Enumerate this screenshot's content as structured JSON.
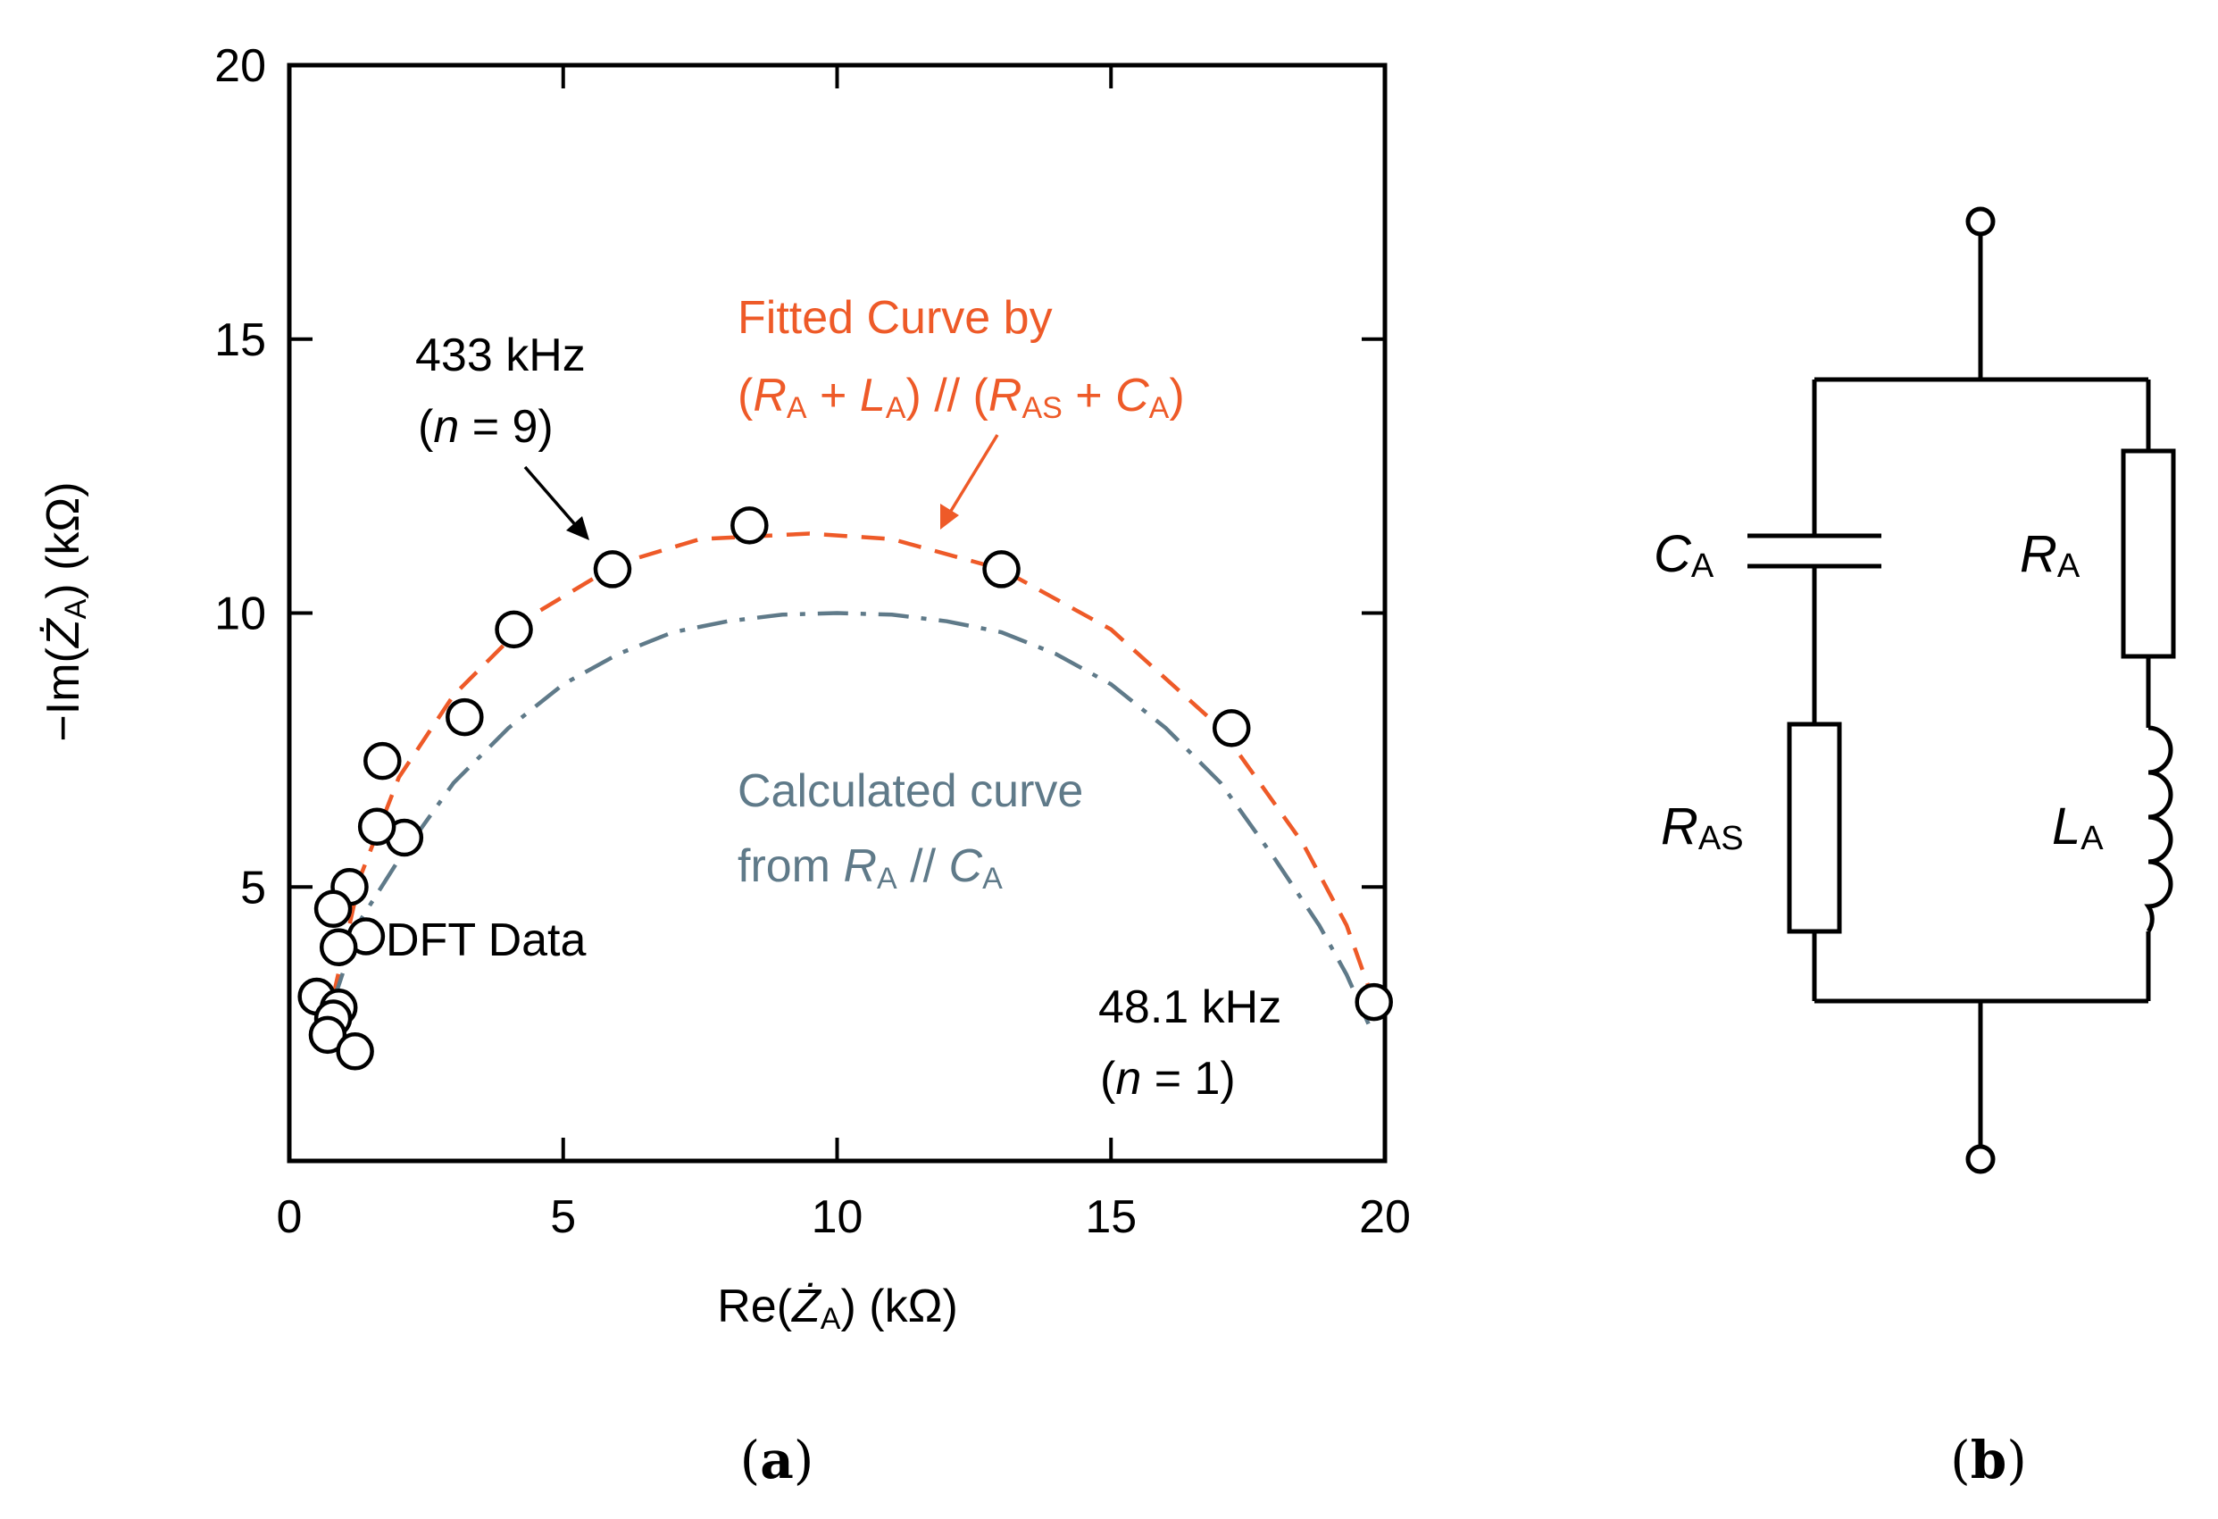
{
  "chart_data": {
    "type": "scatter",
    "xlabel": {
      "main": "Re(",
      "sym": "Ż",
      "sub": "A",
      "close": ") (kΩ)"
    },
    "ylabel": {
      "main": "−Im(",
      "sym": "Ż",
      "sub": "A",
      "close": ") (kΩ)"
    },
    "xlim": [
      0,
      20
    ],
    "ylim": [
      0,
      20
    ],
    "xticks": [
      0,
      5,
      10,
      15,
      20
    ],
    "yticks": [
      5,
      10,
      15,
      20
    ],
    "xtick_labels": [
      "0",
      "5",
      "10",
      "15",
      "20"
    ],
    "ytick_labels": [
      "5",
      "10",
      "15",
      "20"
    ],
    "series": [
      {
        "name": "DFT Data",
        "kind": "markers",
        "points": [
          [
            19.8,
            2.9
          ],
          [
            17.2,
            7.9
          ],
          [
            13.0,
            10.8
          ],
          [
            8.4,
            11.6
          ],
          [
            5.9,
            10.8
          ],
          [
            4.1,
            9.7
          ],
          [
            3.2,
            8.1
          ],
          [
            2.1,
            5.9
          ],
          [
            1.6,
            6.1
          ],
          [
            1.7,
            7.3
          ],
          [
            1.4,
            4.1
          ],
          [
            1.1,
            5.0
          ],
          [
            0.8,
            4.6
          ],
          [
            0.9,
            3.9
          ],
          [
            0.5,
            3.0
          ],
          [
            0.9,
            2.8
          ],
          [
            0.8,
            2.6
          ],
          [
            0.7,
            2.3
          ],
          [
            1.2,
            2.0
          ]
        ]
      },
      {
        "name": "Fitted Curve",
        "kind": "dashed-line",
        "color": "#EE5A28",
        "points": [
          [
            0.8,
            3.0
          ],
          [
            1.3,
            5.2
          ],
          [
            2.0,
            7.0
          ],
          [
            3.0,
            8.5
          ],
          [
            4.5,
            10.0
          ],
          [
            6.0,
            10.9
          ],
          [
            7.5,
            11.35
          ],
          [
            9.5,
            11.45
          ],
          [
            11.0,
            11.35
          ],
          [
            13.0,
            10.8
          ],
          [
            15.0,
            9.7
          ],
          [
            17.0,
            7.9
          ],
          [
            18.5,
            5.8
          ],
          [
            19.3,
            4.3
          ],
          [
            19.8,
            2.9
          ]
        ]
      },
      {
        "name": "Calculated curve",
        "kind": "dash-dot-line",
        "color": "#5F7A89",
        "points": [
          [
            0.8,
            2.9
          ],
          [
            1.3,
            4.4
          ],
          [
            2.0,
            5.5
          ],
          [
            3.0,
            6.9
          ],
          [
            4.0,
            7.9
          ],
          [
            5.0,
            8.7
          ],
          [
            6.0,
            9.25
          ],
          [
            7.0,
            9.65
          ],
          [
            8.0,
            9.85
          ],
          [
            9.0,
            9.97
          ],
          [
            10.0,
            10.0
          ],
          [
            11.0,
            9.97
          ],
          [
            12.0,
            9.85
          ],
          [
            13.0,
            9.65
          ],
          [
            14.0,
            9.25
          ],
          [
            15.0,
            8.7
          ],
          [
            16.0,
            7.9
          ],
          [
            17.0,
            6.9
          ],
          [
            18.0,
            5.5
          ],
          [
            18.8,
            4.3
          ],
          [
            19.3,
            3.4
          ],
          [
            19.7,
            2.5
          ]
        ]
      }
    ],
    "annotations": {
      "f433": {
        "line1": "433 kHz",
        "open": "(",
        "n": "n",
        "eq": " = 9)"
      },
      "f48": {
        "line1": "48.1 kHz",
        "open": "(",
        "n": "n",
        "eq": " = 1)"
      },
      "dft": "DFT Data",
      "fitted": {
        "line1": "Fitted Curve by",
        "p1": "(",
        "R": "R",
        "Asub": "A",
        "plus1": " + ",
        "L": "L",
        "Asub2": "A",
        "mid": ") // (",
        "R2": "R",
        "ASsub": "AS",
        "plus2": " + ",
        "C": "C",
        "Asub3": "A",
        "close": ")"
      },
      "calc": {
        "line1": "Calculated curve",
        "from": "from ",
        "R": "R",
        "Asub": "A",
        "par": " // ",
        "C": "C",
        "Asub2": "A"
      }
    }
  },
  "panel_labels": {
    "a": {
      "open": "(",
      "letter": "a",
      "close": ")"
    },
    "b": {
      "open": "(",
      "letter": "b",
      "close": ")"
    }
  },
  "circuit": {
    "CA": {
      "sym": "C",
      "sub": "A"
    },
    "RA": {
      "sym": "R",
      "sub": "A"
    },
    "RAS": {
      "sym": "R",
      "sub": "AS"
    },
    "LA": {
      "sym": "L",
      "sub": "A"
    }
  },
  "colors": {
    "fitted": "#EE5A28",
    "calculated": "#5F7A89",
    "axis": "#000000"
  }
}
